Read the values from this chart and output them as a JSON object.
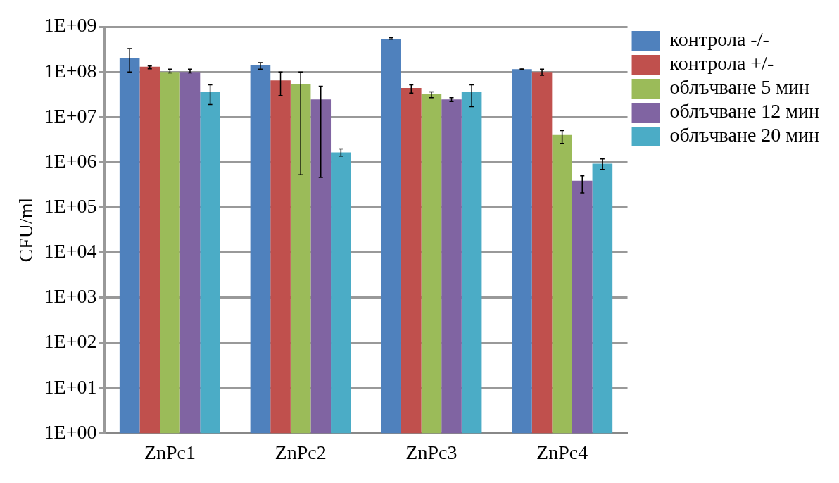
{
  "chart_data": {
    "type": "bar",
    "ylabel": "CFU/ml",
    "log": "y",
    "grid": "y",
    "legend": "right",
    "categories": [
      "ZnPc1",
      "ZnPc2",
      "ZnPc3",
      "ZnPc4"
    ],
    "ylim": [
      1,
      1000000000
    ],
    "yticks": [
      {
        "value": 1,
        "label": "1E+00"
      },
      {
        "value": 10,
        "label": "1E+01"
      },
      {
        "value": 100,
        "label": "1E+02"
      },
      {
        "value": 1000,
        "label": "1E+03"
      },
      {
        "value": 10000,
        "label": "1E+04"
      },
      {
        "value": 100000,
        "label": "1E+05"
      },
      {
        "value": 1000000,
        "label": "1E+06"
      },
      {
        "value": 10000000,
        "label": "1E+07"
      },
      {
        "value": 100000000,
        "label": "1E+08"
      },
      {
        "value": 1000000000,
        "label": "1E+09"
      }
    ],
    "series": [
      {
        "name": "контрола -/-",
        "color": "#4f81bd",
        "values": [
          200000000,
          140000000,
          540000000,
          115000000
        ],
        "errors": [
          [
            100000000,
            330000000
          ],
          [
            115000000,
            160000000
          ],
          [
            530000000,
            570000000
          ],
          [
            113000000,
            120000000
          ]
        ]
      },
      {
        "name": "контрола +/-",
        "color": "#c0504d",
        "values": [
          130000000,
          65000000,
          44000000,
          100000000
        ],
        "errors": [
          [
            117000000,
            135000000
          ],
          [
            30000000,
            100000000
          ],
          [
            34000000,
            52000000
          ],
          [
            84000000,
            115000000
          ]
        ]
      },
      {
        "name": "облъчване 5 мин",
        "color": "#9bbb59",
        "values": [
          100000000,
          54000000,
          33000000,
          4000000
        ],
        "errors": [
          [
            95000000,
            115000000
          ],
          [
            530000,
            100000000
          ],
          [
            27000000,
            36000000
          ],
          [
            2600000,
            5000000
          ]
        ]
      },
      {
        "name": "облъчване 12 мин",
        "color": "#8064a2",
        "values": [
          100000000,
          24500000,
          24500000,
          390000
        ],
        "errors": [
          [
            95000000,
            115000000
          ],
          [
            460000,
            48000000
          ],
          [
            22000000,
            27000000
          ],
          [
            210000,
            500000
          ]
        ]
      },
      {
        "name": "облъчване 20 мин",
        "color": "#4bacc6",
        "values": [
          36000000,
          1650000,
          36000000,
          930000
        ],
        "errors": [
          [
            19000000,
            52000000
          ],
          [
            1370000,
            1970000
          ],
          [
            17000000,
            52000000
          ],
          [
            690000,
            1180000
          ]
        ]
      }
    ]
  }
}
